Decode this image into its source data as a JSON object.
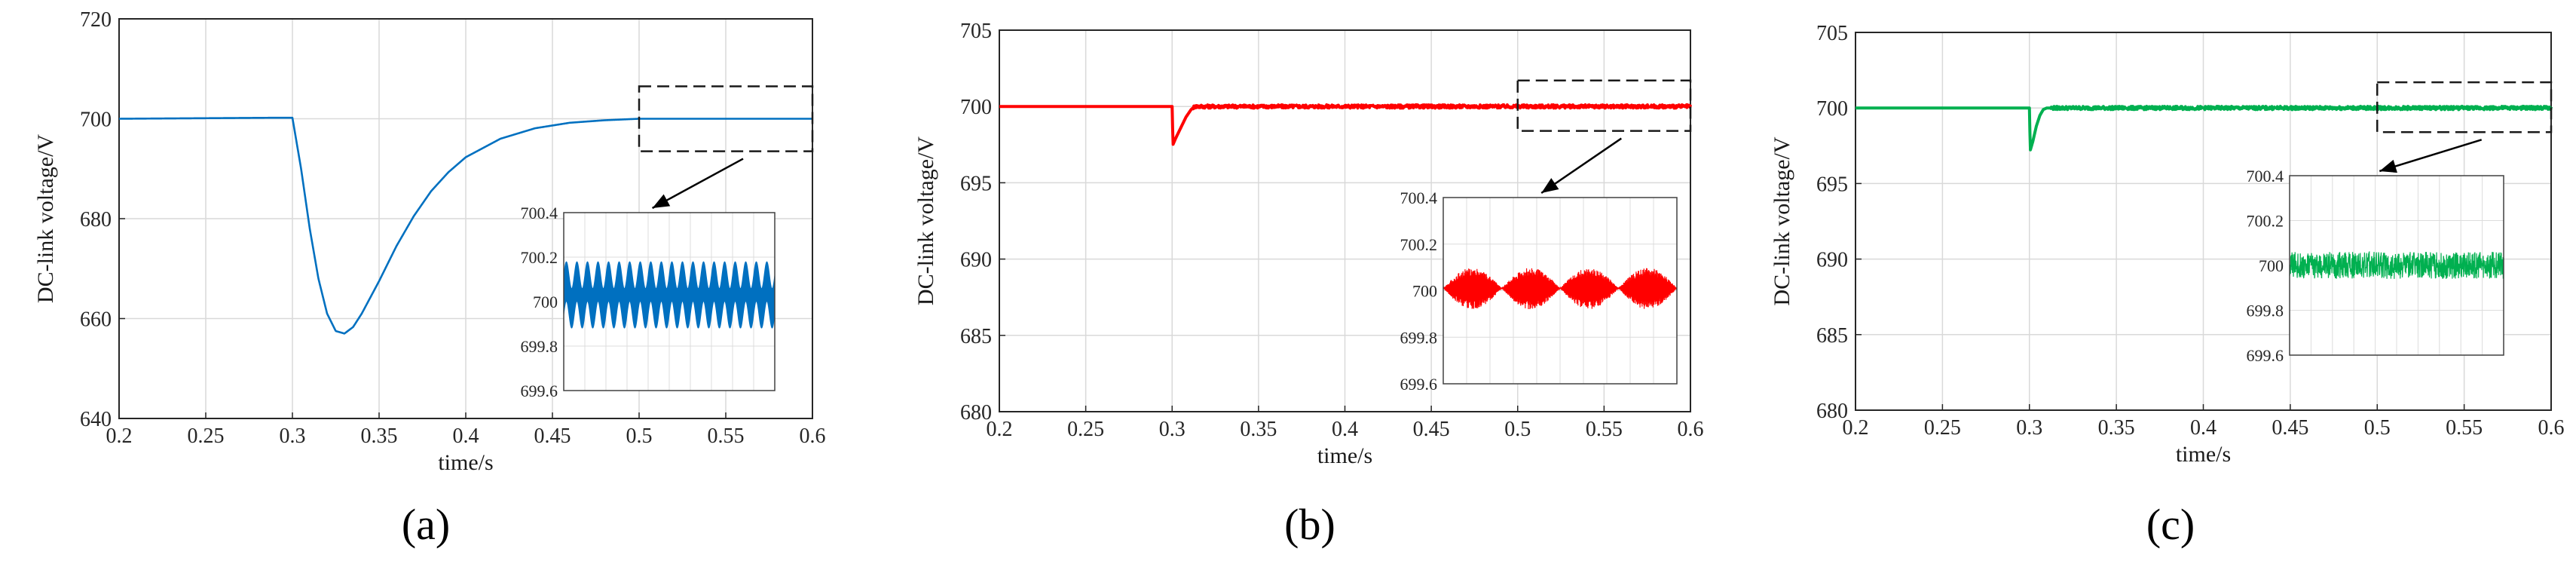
{
  "chart_data": [
    {
      "type": "line",
      "panel_label": "(a)",
      "xlabel": "time/s",
      "ylabel": "DC-link voltage/V",
      "xlim": [
        0.2,
        0.6
      ],
      "ylim": [
        640,
        720
      ],
      "xticks": [
        "0.2",
        "0.25",
        "0.3",
        "0.35",
        "0.4",
        "0.45",
        "0.5",
        "0.55",
        "0.6"
      ],
      "yticks": [
        "640",
        "660",
        "680",
        "700",
        "720"
      ],
      "grid": true,
      "color": "#0070C0",
      "series": [
        {
          "x": [
            0.2,
            0.29,
            0.3,
            0.305,
            0.31,
            0.315,
            0.32,
            0.325,
            0.33,
            0.335,
            0.34,
            0.35,
            0.36,
            0.37,
            0.38,
            0.39,
            0.4,
            0.42,
            0.44,
            0.46,
            0.48,
            0.5,
            0.55,
            0.6
          ],
          "y": [
            700,
            700.2,
            700.2,
            690,
            678,
            668,
            661,
            657.5,
            657,
            658.3,
            661,
            667.5,
            674.5,
            680.5,
            685.5,
            689.3,
            692.3,
            696,
            698.1,
            699.2,
            699.7,
            700,
            700,
            700
          ]
        }
      ],
      "highlight_window": {
        "x": [
          0.5,
          0.6
        ],
        "y": [
          693.5,
          706.5
        ]
      },
      "inset": {
        "xlim": [
          0.5,
          0.6
        ],
        "ylim": [
          699.6,
          700.4
        ],
        "yticks": [
          "699.6",
          "699.8",
          "700",
          "700.2",
          "700.4"
        ],
        "signal": {
          "mean": 700.03,
          "ripple_amplitude": 0.11,
          "ripple_cycles": 20,
          "band_thickness": 0.05
        }
      }
    },
    {
      "type": "line",
      "panel_label": "(b)",
      "xlabel": "time/s",
      "ylabel": "DC-link voltage/V",
      "xlim": [
        0.2,
        0.6
      ],
      "ylim": [
        680,
        705
      ],
      "xticks": [
        "0.2",
        "0.25",
        "0.3",
        "0.35",
        "0.4",
        "0.45",
        "0.5",
        "0.55",
        "0.6"
      ],
      "yticks": [
        "680",
        "685",
        "690",
        "695",
        "700",
        "705"
      ],
      "grid": true,
      "color": "#FF0000",
      "series": [
        {
          "x": [
            0.2,
            0.3,
            0.3005,
            0.302,
            0.305,
            0.308,
            0.311,
            0.313,
            0.315,
            0.6
          ],
          "y": [
            700,
            700,
            697.5,
            697.9,
            698.6,
            699.3,
            699.8,
            700,
            700,
            700
          ]
        }
      ],
      "highlight_window": {
        "x": [
          0.5,
          0.6
        ],
        "y": [
          698.4,
          701.7
        ]
      },
      "inset": {
        "xlim": [
          0.5,
          0.6
        ],
        "ylim": [
          699.6,
          700.4
        ],
        "yticks": [
          "699.6",
          "699.8",
          "700",
          "700.2",
          "700.4"
        ],
        "signal": {
          "mean": 700.01,
          "ripple_amplitude": 0.09,
          "ripple_cycles": 40,
          "band_thickness": 0.0
        }
      }
    },
    {
      "type": "line",
      "panel_label": "(c)",
      "xlabel": "time/s",
      "ylabel": "DC-link voltage/V",
      "xlim": [
        0.2,
        0.6
      ],
      "ylim": [
        680,
        705
      ],
      "xticks": [
        "0.2",
        "0.25",
        "0.3",
        "0.35",
        "0.4",
        "0.45",
        "0.5",
        "0.55",
        "0.6"
      ],
      "yticks": [
        "680",
        "685",
        "690",
        "695",
        "700",
        "705"
      ],
      "grid": true,
      "color": "#00B050",
      "series": [
        {
          "x": [
            0.2,
            0.3,
            0.3005,
            0.302,
            0.304,
            0.306,
            0.308,
            0.31,
            0.6
          ],
          "y": [
            700,
            700,
            697.2,
            697.8,
            698.8,
            699.5,
            699.9,
            700,
            700
          ]
        }
      ],
      "highlight_window": {
        "x": [
          0.5,
          0.6
        ],
        "y": [
          698.4,
          701.7
        ]
      },
      "inset": {
        "xlim": [
          0.5,
          0.6
        ],
        "ylim": [
          699.6,
          700.4
        ],
        "yticks": [
          "699.6",
          "699.8",
          "700",
          "700.2",
          "700.4"
        ],
        "signal": {
          "mean": 700.0,
          "ripple_amplitude": 0.06,
          "ripple_cycles": 0,
          "band_thickness": 0.0
        }
      }
    }
  ]
}
